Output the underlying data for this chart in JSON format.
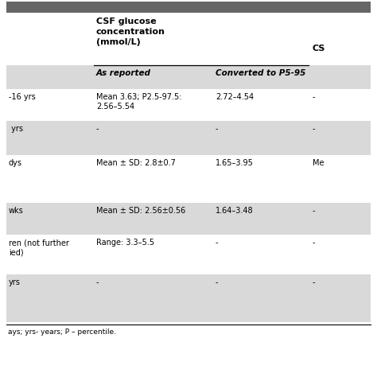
{
  "rows": [
    {
      "label": "-16 yrs",
      "col1": "Mean 3.63; P2.5-97.5:\n2.56–5.54",
      "col2": "2.72–4.54",
      "col3": "-",
      "bg": "#ffffff"
    },
    {
      "label": " yrs",
      "col1": "-",
      "col2": "-",
      "col3": "-",
      "bg": "#d9d9d9"
    },
    {
      "label": "dys",
      "col1": "Mean ± SD: 2.8±0.7",
      "col2": "1.65–3.95",
      "col3": "Me",
      "bg": "#ffffff"
    },
    {
      "label": "wks",
      "col1": "Mean ± SD: 2.56±0.56",
      "col2": "1.64–3.48",
      "col3": "-",
      "bg": "#d9d9d9"
    },
    {
      "label": "ren (not further\nied)",
      "col1": "Range: 3.3–5.5",
      "col2": "-",
      "col3": "-",
      "bg": "#ffffff"
    },
    {
      "label": "yrs",
      "col1": "-",
      "col2": "-",
      "col3": "-",
      "bg": "#d9d9d9"
    }
  ],
  "footer": "ays; yrs- years; P – percentile.",
  "bg_color": "#ffffff",
  "header_bg": "#d9d9d9",
  "row_white_bg": "#ffffff",
  "line_color": "#000000",
  "top_bar_color": "#666666",
  "csf_header": "CSF glucose\nconcentration\n(mmol/L)",
  "cs_label": "CS",
  "sub_col1": "As reported",
  "sub_col2": "Converted to P5-95",
  "font_size": 7.0,
  "header_font_size": 8.0,
  "sub_header_font_size": 7.5
}
